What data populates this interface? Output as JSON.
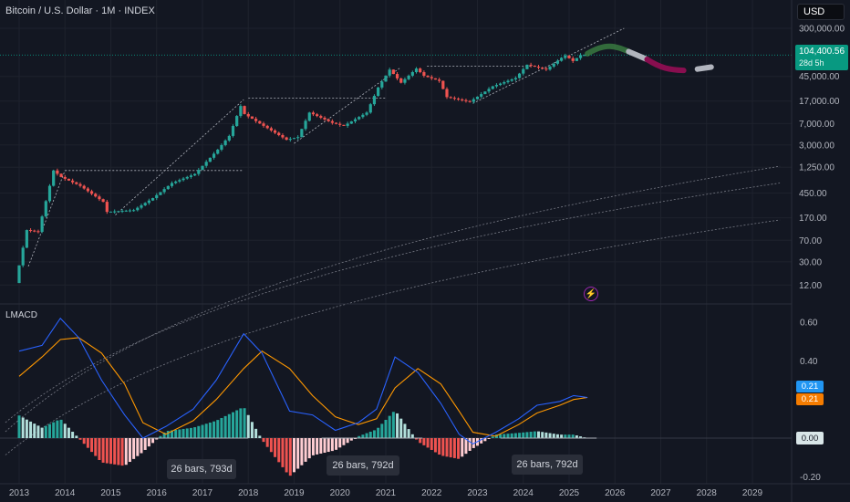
{
  "header": {
    "title": "Bitcoin / U.S. Dollar · 1M · INDEX",
    "currency_button": "USD"
  },
  "price_badge": {
    "price": "104,400.56",
    "countdown": "28d 5h",
    "color": "#089981"
  },
  "indicator": {
    "name": "LMACD",
    "macd_value": "0.21",
    "signal_value": "0.21",
    "zero_value": "0.00",
    "macd_color": "#2962ff",
    "signal_color": "#ff9800"
  },
  "annotations": [
    {
      "text": "26 bars, 793d"
    },
    {
      "text": "26 bars, 792d"
    },
    {
      "text": "26 bars, 792d"
    }
  ],
  "colors": {
    "background": "#131722",
    "up": "#26a69a",
    "down": "#ef5350",
    "grid": "#1f2430"
  },
  "chart_data": [
    {
      "type": "candlestick",
      "scale": "log",
      "x_ticks": [
        "2013",
        "2014",
        "2015",
        "2016",
        "2017",
        "2018",
        "2019",
        "2020",
        "2021",
        "2022",
        "2023",
        "2024",
        "2025",
        "2026",
        "2027",
        "2028",
        "2029"
      ],
      "y_ticks": [
        "300,000.00",
        "45,000.00",
        "17,000.00",
        "7,000.00",
        "3,000.00",
        "1,250.00",
        "450.00",
        "170.00",
        "70.00",
        "30.00",
        "12.00"
      ],
      "ylim": [
        9,
        500000
      ],
      "series": [
        {
          "name": "BTCUSD",
          "points": [
            {
              "x": "2013-01",
              "y": 13
            },
            {
              "x": "2013-04",
              "y": 105
            },
            {
              "x": "2013-07",
              "y": 98
            },
            {
              "x": "2013-11",
              "y": 1100
            },
            {
              "x": "2014-01",
              "y": 850
            },
            {
              "x": "2014-06",
              "y": 600
            },
            {
              "x": "2014-12",
              "y": 320
            },
            {
              "x": "2015-01",
              "y": 215
            },
            {
              "x": "2015-08",
              "y": 230
            },
            {
              "x": "2016-01",
              "y": 370
            },
            {
              "x": "2016-06",
              "y": 670
            },
            {
              "x": "2016-12",
              "y": 960
            },
            {
              "x": "2017-06",
              "y": 2500
            },
            {
              "x": "2017-09",
              "y": 4300
            },
            {
              "x": "2017-12",
              "y": 14000
            },
            {
              "x": "2018-01",
              "y": 10200
            },
            {
              "x": "2018-06",
              "y": 6400
            },
            {
              "x": "2018-12",
              "y": 3700
            },
            {
              "x": "2019-03",
              "y": 4100
            },
            {
              "x": "2019-06",
              "y": 10800
            },
            {
              "x": "2019-12",
              "y": 7200
            },
            {
              "x": "2020-03",
              "y": 6400
            },
            {
              "x": "2020-09",
              "y": 10800
            },
            {
              "x": "2020-12",
              "y": 29000
            },
            {
              "x": "2021-03",
              "y": 58800
            },
            {
              "x": "2021-06",
              "y": 35000
            },
            {
              "x": "2021-10",
              "y": 61300
            },
            {
              "x": "2021-12",
              "y": 46200
            },
            {
              "x": "2022-04",
              "y": 37700
            },
            {
              "x": "2022-06",
              "y": 19900
            },
            {
              "x": "2022-12",
              "y": 16500
            },
            {
              "x": "2023-06",
              "y": 30400
            },
            {
              "x": "2023-12",
              "y": 42200
            },
            {
              "x": "2024-03",
              "y": 71300
            },
            {
              "x": "2024-08",
              "y": 59000
            },
            {
              "x": "2024-12",
              "y": 93400
            },
            {
              "x": "2025-01",
              "y": 102400
            },
            {
              "x": "2025-03",
              "y": 82500
            },
            {
              "x": "2025-05",
              "y": 104400
            }
          ]
        }
      ]
    },
    {
      "type": "line",
      "title": "LMACD",
      "y_ticks": [
        "0.60",
        "0.40",
        "0.21",
        "0.00",
        "-0.20"
      ],
      "ylim": [
        -0.22,
        0.66
      ],
      "series": [
        {
          "name": "MACD",
          "points": [
            {
              "x": "2013.0",
              "y": 0.45
            },
            {
              "x": "2013.5",
              "y": 0.48
            },
            {
              "x": "2013.9",
              "y": 0.62
            },
            {
              "x": "2014.3",
              "y": 0.52
            },
            {
              "x": "2014.8",
              "y": 0.3
            },
            {
              "x": "2015.3",
              "y": 0.12
            },
            {
              "x": "2015.7",
              "y": 0.0
            },
            {
              "x": "2016.2",
              "y": 0.06
            },
            {
              "x": "2016.8",
              "y": 0.15
            },
            {
              "x": "2017.3",
              "y": 0.3
            },
            {
              "x": "2017.9",
              "y": 0.54
            },
            {
              "x": "2018.3",
              "y": 0.44
            },
            {
              "x": "2018.9",
              "y": 0.14
            },
            {
              "x": "2019.4",
              "y": 0.12
            },
            {
              "x": "2019.9",
              "y": 0.04
            },
            {
              "x": "2020.4",
              "y": 0.08
            },
            {
              "x": "2020.8",
              "y": 0.15
            },
            {
              "x": "2021.2",
              "y": 0.42
            },
            {
              "x": "2021.7",
              "y": 0.34
            },
            {
              "x": "2022.2",
              "y": 0.18
            },
            {
              "x": "2022.6",
              "y": 0.02
            },
            {
              "x": "2022.9",
              "y": -0.03
            },
            {
              "x": "2023.4",
              "y": 0.03
            },
            {
              "x": "2023.9",
              "y": 0.1
            },
            {
              "x": "2024.3",
              "y": 0.17
            },
            {
              "x": "2024.8",
              "y": 0.19
            },
            {
              "x": "2025.1",
              "y": 0.22
            },
            {
              "x": "2025.4",
              "y": 0.21
            }
          ]
        },
        {
          "name": "Signal",
          "points": [
            {
              "x": "2013.0",
              "y": 0.32
            },
            {
              "x": "2013.5",
              "y": 0.42
            },
            {
              "x": "2013.9",
              "y": 0.51
            },
            {
              "x": "2014.3",
              "y": 0.52
            },
            {
              "x": "2014.8",
              "y": 0.44
            },
            {
              "x": "2015.3",
              "y": 0.28
            },
            {
              "x": "2015.7",
              "y": 0.08
            },
            {
              "x": "2016.2",
              "y": 0.02
            },
            {
              "x": "2016.8",
              "y": 0.09
            },
            {
              "x": "2017.3",
              "y": 0.2
            },
            {
              "x": "2017.9",
              "y": 0.36
            },
            {
              "x": "2018.3",
              "y": 0.45
            },
            {
              "x": "2018.9",
              "y": 0.36
            },
            {
              "x": "2019.4",
              "y": 0.22
            },
            {
              "x": "2019.9",
              "y": 0.11
            },
            {
              "x": "2020.4",
              "y": 0.07
            },
            {
              "x": "2020.8",
              "y": 0.1
            },
            {
              "x": "2021.2",
              "y": 0.26
            },
            {
              "x": "2021.7",
              "y": 0.36
            },
            {
              "x": "2022.2",
              "y": 0.28
            },
            {
              "x": "2022.6",
              "y": 0.14
            },
            {
              "x": "2022.9",
              "y": 0.03
            },
            {
              "x": "2023.4",
              "y": 0.01
            },
            {
              "x": "2023.9",
              "y": 0.07
            },
            {
              "x": "2024.3",
              "y": 0.13
            },
            {
              "x": "2024.8",
              "y": 0.17
            },
            {
              "x": "2025.1",
              "y": 0.2
            },
            {
              "x": "2025.4",
              "y": 0.21
            }
          ]
        }
      ]
    }
  ]
}
